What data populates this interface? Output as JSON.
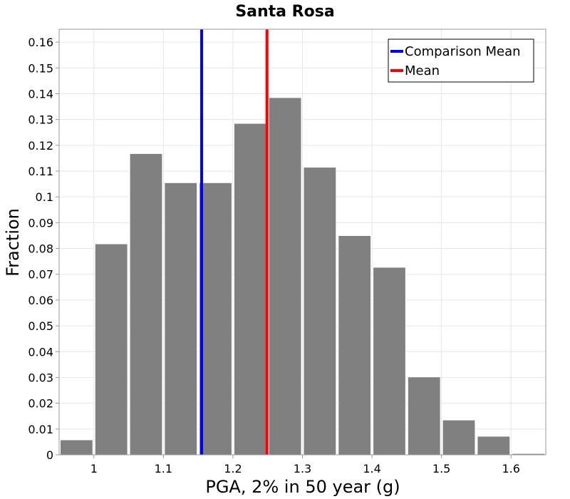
{
  "chart_data": {
    "type": "bar",
    "title": "Santa Rosa",
    "xlabel": "PGA, 2% in 50 year (g)",
    "ylabel": "Fraction",
    "xlim": [
      0.95,
      1.65
    ],
    "ylim": [
      0,
      0.165
    ],
    "grid": true,
    "bin_width": 0.05,
    "x": [
      0.975,
      1.025,
      1.075,
      1.125,
      1.175,
      1.225,
      1.275,
      1.325,
      1.375,
      1.425,
      1.475,
      1.525,
      1.575,
      1.625
    ],
    "values": [
      0.0058,
      0.0818,
      0.1168,
      0.1055,
      0.1055,
      0.1285,
      0.1385,
      0.1115,
      0.085,
      0.0727,
      0.0302,
      0.0135,
      0.0072,
      0.0005
    ],
    "xticks": [
      1,
      1.1,
      1.2,
      1.3,
      1.4,
      1.5,
      1.6
    ],
    "xtick_labels": [
      "1",
      "1.1",
      "1.2",
      "1.3",
      "1.4",
      "1.5",
      "1.6"
    ],
    "yticks": [
      0,
      0.01,
      0.02,
      0.03,
      0.04,
      0.05,
      0.06,
      0.07,
      0.08,
      0.09,
      0.1,
      0.11,
      0.12,
      0.13,
      0.14,
      0.15,
      0.16
    ],
    "ytick_labels": [
      "0",
      "0.01",
      "0.02",
      "0.03",
      "0.04",
      "0.05",
      "0.06",
      "0.07",
      "0.08",
      "0.09",
      "0.1",
      "0.11",
      "0.12",
      "0.13",
      "0.14",
      "0.15",
      "0.16"
    ],
    "vlines": [
      {
        "name": "Comparison Mean",
        "x": 1.155,
        "color": "#0000ff"
      },
      {
        "name": "Mean",
        "x": 1.249,
        "color": "#ff0000"
      }
    ],
    "legend_position": "top-right",
    "bar_color": "#808080"
  }
}
